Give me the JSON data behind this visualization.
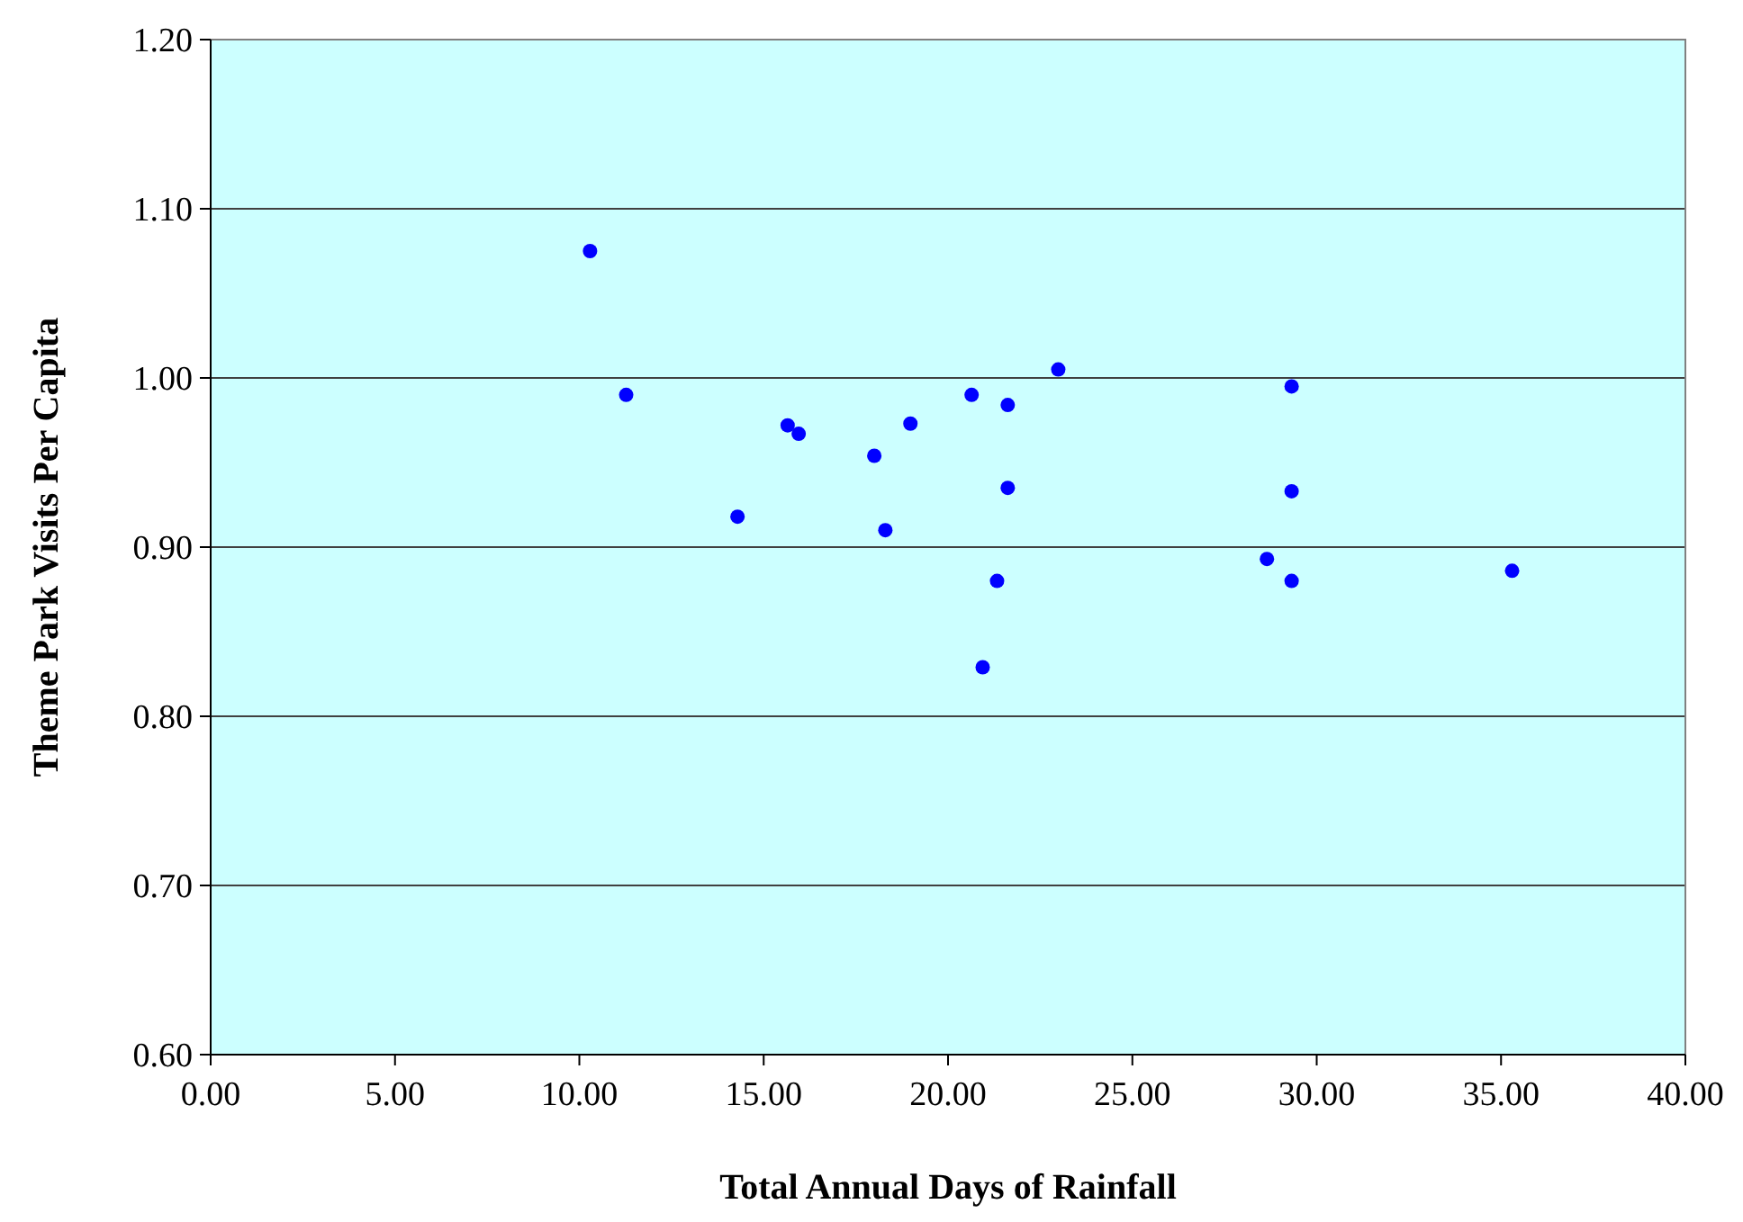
{
  "chart_data": {
    "type": "scatter",
    "xlabel": "Total Annual Days of Rainfall",
    "ylabel": "Theme Park Visits Per Capita",
    "x": [
      10.29,
      11.27,
      14.29,
      15.65,
      15.95,
      18.0,
      18.3,
      18.98,
      20.64,
      20.94,
      21.33,
      21.62,
      21.62,
      22.99,
      29.32,
      29.32,
      28.65,
      29.32,
      35.3
    ],
    "series": [
      {
        "color": "#0000ff",
        "values": [
          1.075,
          0.99,
          0.918,
          0.972,
          0.967,
          0.954,
          0.91,
          0.973,
          0.99,
          0.829,
          0.88,
          0.984,
          0.935,
          1.005,
          0.995,
          0.933,
          0.893,
          0.88,
          0.886
        ]
      }
    ],
    "xlim": [
      0,
      40
    ],
    "ylim": [
      0.6,
      1.2
    ],
    "xticks": [
      {
        "value": 0,
        "label": "0.00"
      },
      {
        "value": 5,
        "label": "5.00"
      },
      {
        "value": 10,
        "label": "10.00"
      },
      {
        "value": 15,
        "label": "15.00"
      },
      {
        "value": 20,
        "label": "20.00"
      },
      {
        "value": 25,
        "label": "25.00"
      },
      {
        "value": 30,
        "label": "30.00"
      },
      {
        "value": 35,
        "label": "35.00"
      },
      {
        "value": 40,
        "label": "40.00"
      }
    ],
    "yticks": [
      {
        "value": 0.6,
        "label": "0.60"
      },
      {
        "value": 0.7,
        "label": "0.70"
      },
      {
        "value": 0.8,
        "label": "0.80"
      },
      {
        "value": 0.9,
        "label": "0.90"
      },
      {
        "value": 1.0,
        "label": "1.00"
      },
      {
        "value": 1.1,
        "label": "1.10"
      },
      {
        "value": 1.2,
        "label": "1.20"
      }
    ],
    "grid": "y",
    "marker": "circle"
  }
}
